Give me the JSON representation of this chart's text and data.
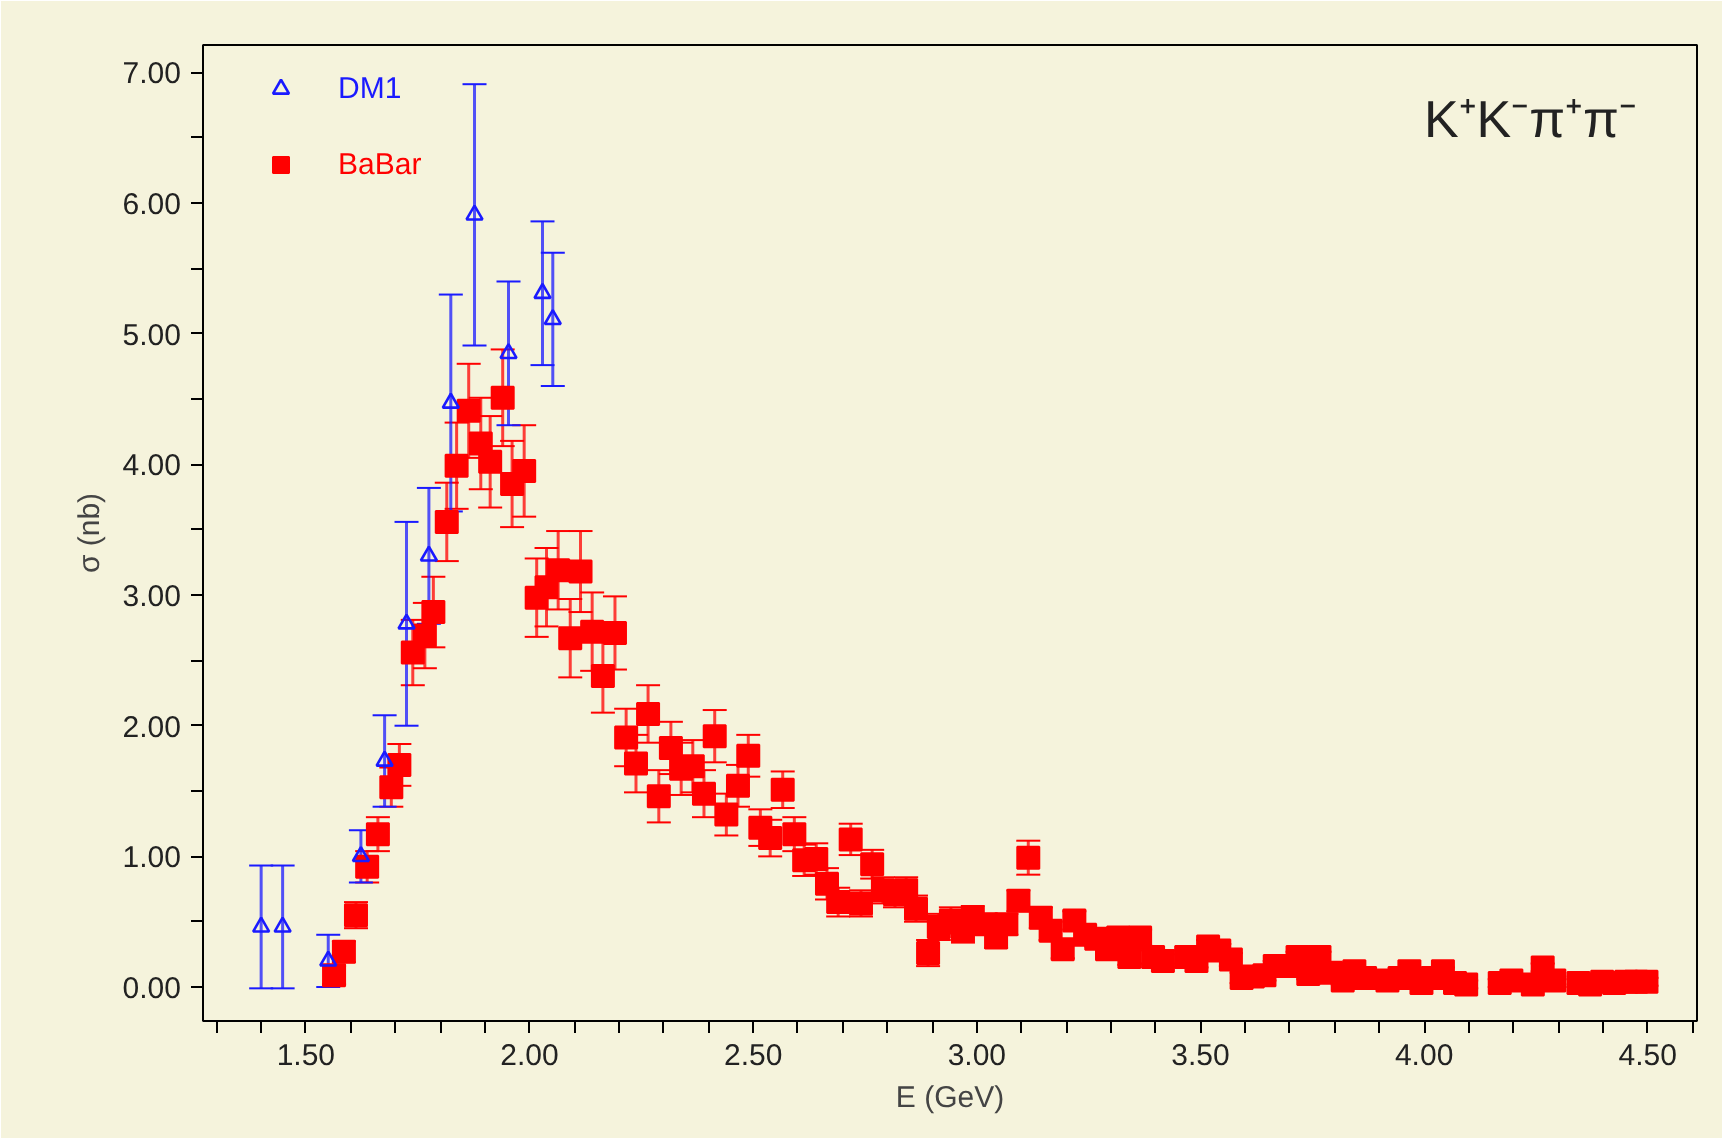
{
  "chart_data": {
    "type": "scatter",
    "xlabel": "E (GeV)",
    "ylabel": "σ (nb)",
    "annotations": [
      "K⁺K⁻π⁺π⁻"
    ],
    "xlim": [
      1.27,
      4.61
    ],
    "ylim": [
      -0.26,
      7.21
    ],
    "xticks": [
      {
        "value": 1.3,
        "label": null
      },
      {
        "value": 1.4,
        "label": null
      },
      {
        "value": 1.5,
        "label": "1.50"
      },
      {
        "value": 1.6,
        "label": null
      },
      {
        "value": 1.7,
        "label": null
      },
      {
        "value": 1.8,
        "label": null
      },
      {
        "value": 1.9,
        "label": null
      },
      {
        "value": 2.0,
        "label": "2.00"
      },
      {
        "value": 2.1,
        "label": null
      },
      {
        "value": 2.2,
        "label": null
      },
      {
        "value": 2.3,
        "label": null
      },
      {
        "value": 2.4,
        "label": null
      },
      {
        "value": 2.5,
        "label": "2.50"
      },
      {
        "value": 2.6,
        "label": null
      },
      {
        "value": 2.7,
        "label": null
      },
      {
        "value": 2.8,
        "label": null
      },
      {
        "value": 2.9,
        "label": null
      },
      {
        "value": 3.0,
        "label": "3.00"
      },
      {
        "value": 3.1,
        "label": null
      },
      {
        "value": 3.2,
        "label": null
      },
      {
        "value": 3.3,
        "label": null
      },
      {
        "value": 3.4,
        "label": null
      },
      {
        "value": 3.5,
        "label": "3.50"
      },
      {
        "value": 3.6,
        "label": null
      },
      {
        "value": 3.7,
        "label": null
      },
      {
        "value": 3.8,
        "label": null
      },
      {
        "value": 3.9,
        "label": null
      },
      {
        "value": 4.0,
        "label": "4.00"
      },
      {
        "value": 4.1,
        "label": null
      },
      {
        "value": 4.2,
        "label": null
      },
      {
        "value": 4.3,
        "label": null
      },
      {
        "value": 4.4,
        "label": null
      },
      {
        "value": 4.5,
        "label": "4.50"
      },
      {
        "value": 4.6,
        "label": null
      }
    ],
    "yticks": [
      {
        "value": 0,
        "label": "0.00"
      },
      {
        "value": 0.5,
        "label": null
      },
      {
        "value": 1,
        "label": "1.00"
      },
      {
        "value": 1.5,
        "label": null
      },
      {
        "value": 2,
        "label": "2.00"
      },
      {
        "value": 2.5,
        "label": null
      },
      {
        "value": 3,
        "label": "3.00"
      },
      {
        "value": 3.5,
        "label": null
      },
      {
        "value": 4,
        "label": "4.00"
      },
      {
        "value": 4.5,
        "label": null
      },
      {
        "value": 5,
        "label": "5.00"
      },
      {
        "value": 5.5,
        "label": null
      },
      {
        "value": 6,
        "label": "6.00"
      },
      {
        "value": 6.5,
        "label": null
      },
      {
        "value": 7,
        "label": "7.00"
      }
    ],
    "legend": "top left",
    "series": [
      {
        "name": "DM1",
        "color": "#1a1aff",
        "marker": "triangle",
        "x": [
          1.4,
          1.448,
          1.55,
          1.623,
          1.676,
          1.725,
          1.775,
          1.824,
          1.877,
          1.953,
          2.029,
          2.052
        ],
        "values": [
          0.46,
          0.46,
          0.2,
          1.0,
          1.73,
          2.78,
          3.3,
          4.47,
          5.91,
          4.85,
          5.31,
          5.11
        ],
        "errors": [
          0.47,
          0.47,
          0.2,
          0.2,
          0.35,
          0.78,
          0.52,
          0.83,
          1.0,
          0.55,
          0.55,
          0.51
        ]
      },
      {
        "name": "BaBar",
        "color": "#ff0000",
        "marker": "square",
        "x": [
          1.563,
          1.585,
          1.612,
          1.637,
          1.661,
          1.691,
          1.709,
          1.739,
          1.766,
          1.785,
          1.815,
          1.837,
          1.864,
          1.891,
          1.912,
          1.94,
          1.961,
          1.988,
          2.016,
          2.038,
          2.064,
          2.091,
          2.114,
          2.14,
          2.164,
          2.191,
          2.216,
          2.238,
          2.265,
          2.289,
          2.316,
          2.339,
          2.365,
          2.39,
          2.414,
          2.44,
          2.466,
          2.489,
          2.516,
          2.538,
          2.566,
          2.592,
          2.614,
          2.641,
          2.665,
          2.69,
          2.718,
          2.741,
          2.766,
          2.79,
          2.817,
          2.842,
          2.864,
          2.891,
          2.915,
          2.942,
          2.969,
          2.991,
          3.021,
          3.043,
          3.066,
          3.093,
          3.115,
          3.143,
          3.165,
          3.192,
          3.218,
          3.242,
          3.267,
          3.291,
          3.316,
          3.341,
          3.365,
          3.394,
          3.416,
          3.468,
          3.491,
          3.517,
          3.542,
          3.568,
          3.592,
          3.617,
          3.643,
          3.666,
          3.692,
          3.717,
          3.741,
          3.766,
          3.792,
          3.818,
          3.844,
          3.868,
          3.918,
          3.945,
          3.967,
          3.994,
          4.019,
          4.042,
          4.069,
          4.094,
          4.169,
          4.195,
          4.243,
          4.265,
          4.291,
          4.345,
          4.371,
          4.398,
          4.425,
          4.452,
          4.474,
          4.497
        ],
        "values": [
          0.09,
          0.27,
          0.55,
          0.92,
          1.17,
          1.53,
          1.7,
          2.56,
          2.69,
          2.87,
          3.56,
          3.99,
          4.41,
          4.16,
          4.02,
          4.51,
          3.85,
          3.95,
          2.98,
          3.06,
          3.19,
          2.67,
          3.18,
          2.72,
          2.38,
          2.71,
          1.91,
          1.71,
          2.09,
          1.46,
          1.83,
          1.67,
          1.69,
          1.48,
          1.92,
          1.32,
          1.54,
          1.77,
          1.22,
          1.14,
          1.51,
          1.17,
          0.97,
          0.98,
          0.79,
          0.65,
          1.13,
          0.64,
          0.94,
          0.74,
          0.71,
          0.74,
          0.6,
          0.26,
          0.46,
          0.51,
          0.43,
          0.53,
          0.48,
          0.38,
          0.48,
          0.66,
          0.99,
          0.53,
          0.43,
          0.29,
          0.51,
          0.4,
          0.37,
          0.29,
          0.38,
          0.23,
          0.38,
          0.23,
          0.2,
          0.23,
          0.2,
          0.31,
          0.28,
          0.21,
          0.07,
          0.08,
          0.09,
          0.16,
          0.16,
          0.23,
          0.1,
          0.23,
          0.11,
          0.05,
          0.12,
          0.07,
          0.05,
          0.07,
          0.12,
          0.03,
          0.07,
          0.12,
          0.03,
          0.02,
          0.03,
          0.05,
          0.02,
          0.15,
          0.05,
          0.03,
          0.02,
          0.04,
          0.03,
          0.04,
          0.04,
          0.04
        ],
        "errors": [
          0.07,
          0.08,
          0.1,
          0.12,
          0.13,
          0.15,
          0.16,
          0.25,
          0.25,
          0.27,
          0.3,
          0.33,
          0.36,
          0.35,
          0.35,
          0.37,
          0.33,
          0.35,
          0.3,
          0.3,
          0.3,
          0.3,
          0.31,
          0.3,
          0.28,
          0.28,
          0.22,
          0.22,
          0.22,
          0.2,
          0.2,
          0.2,
          0.2,
          0.18,
          0.2,
          0.16,
          0.16,
          0.16,
          0.14,
          0.14,
          0.14,
          0.13,
          0.12,
          0.12,
          0.12,
          0.11,
          0.12,
          0.1,
          0.11,
          0.1,
          0.1,
          0.1,
          0.1,
          0.1,
          0.1,
          0.1,
          0.09,
          0.09,
          0.08,
          0.08,
          0.08,
          0.08,
          0.13,
          0.08,
          0.07,
          0.07,
          0.07,
          0.07,
          0.06,
          0.06,
          0.06,
          0.06,
          0.06,
          0.05,
          0.05,
          0.05,
          0.05,
          0.05,
          0.05,
          0.05,
          0.04,
          0.04,
          0.04,
          0.04,
          0.04,
          0.04,
          0.04,
          0.04,
          0.04,
          0.03,
          0.03,
          0.03,
          0.03,
          0.03,
          0.03,
          0.03,
          0.03,
          0.03,
          0.03,
          0.03,
          0.03,
          0.03,
          0.03,
          0.03,
          0.03,
          0.03,
          0.03,
          0.03,
          0.03,
          0.03,
          0.03,
          0.03
        ]
      }
    ]
  }
}
